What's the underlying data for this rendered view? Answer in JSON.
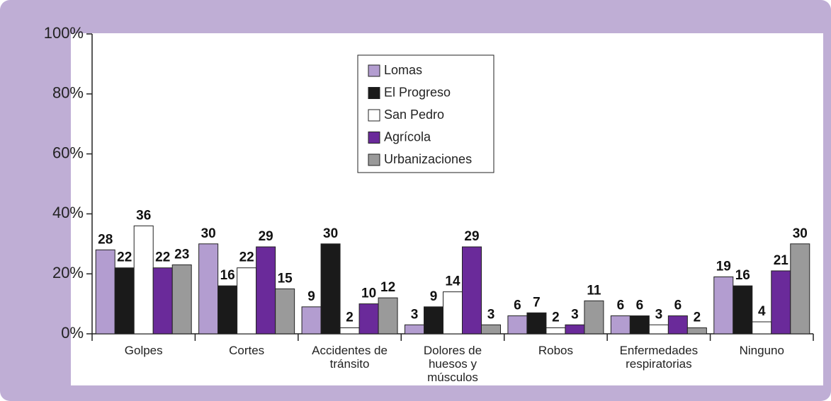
{
  "chart_data": {
    "type": "bar",
    "categories": [
      "Golpes",
      "Cortes",
      "Accidentes de tránsito",
      "Dolores de huesos y músculos",
      "Robos",
      "Enfermedades respiratorias",
      "Ninguno"
    ],
    "series": [
      {
        "name": "Lomas",
        "color": "#b39dd0",
        "values": [
          28,
          30,
          9,
          3,
          6,
          6,
          19
        ]
      },
      {
        "name": "El Progreso",
        "color": "#1a1a1a",
        "values": [
          22,
          16,
          30,
          9,
          7,
          6,
          16
        ]
      },
      {
        "name": "San Pedro",
        "color": "#ffffff",
        "values": [
          36,
          22,
          2,
          14,
          2,
          3,
          4
        ]
      },
      {
        "name": "Agrícola",
        "color": "#6a2a9a",
        "values": [
          22,
          29,
          10,
          29,
          3,
          6,
          21
        ]
      },
      {
        "name": "Urbanizaciones",
        "color": "#9a9a9a",
        "values": [
          23,
          15,
          12,
          3,
          11,
          2,
          30
        ]
      }
    ],
    "ylim": [
      0,
      100
    ],
    "yticks": [
      {
        "value": 0,
        "label": "0%"
      },
      {
        "value": 20,
        "label": "20%"
      },
      {
        "value": 40,
        "label": "40%"
      },
      {
        "value": 60,
        "label": "60%"
      },
      {
        "value": 80,
        "label": "80%"
      },
      {
        "value": 100,
        "label": "100%"
      }
    ],
    "legend": "top-center"
  }
}
